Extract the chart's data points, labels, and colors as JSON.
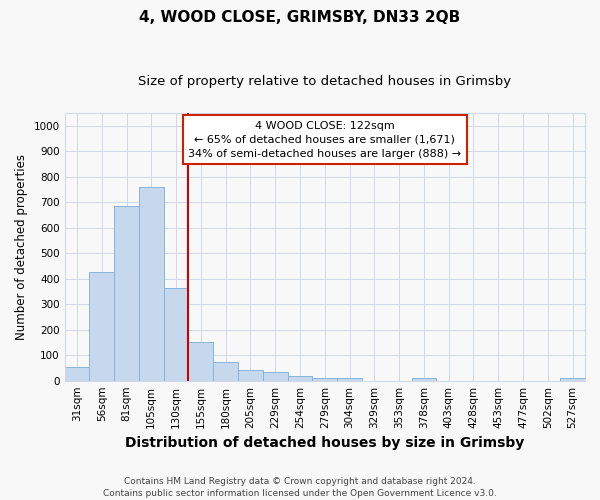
{
  "title": "4, WOOD CLOSE, GRIMSBY, DN33 2QB",
  "subtitle": "Size of property relative to detached houses in Grimsby",
  "xlabel": "Distribution of detached houses by size in Grimsby",
  "ylabel": "Number of detached properties",
  "categories": [
    "31sqm",
    "56sqm",
    "81sqm",
    "105sqm",
    "130sqm",
    "155sqm",
    "180sqm",
    "205sqm",
    "229sqm",
    "254sqm",
    "279sqm",
    "304sqm",
    "329sqm",
    "353sqm",
    "378sqm",
    "403sqm",
    "428sqm",
    "453sqm",
    "477sqm",
    "502sqm",
    "527sqm"
  ],
  "values": [
    52,
    425,
    685,
    760,
    365,
    153,
    75,
    40,
    33,
    18,
    12,
    10,
    0,
    0,
    10,
    0,
    0,
    0,
    0,
    0,
    10
  ],
  "bar_color": "#c5d8ee",
  "bar_edge_color": "#88b4d8",
  "marker_line_index": 4,
  "marker_color": "#cc0000",
  "annotation_text": "4 WOOD CLOSE: 122sqm\n← 65% of detached houses are smaller (1,671)\n34% of semi-detached houses are larger (888) →",
  "annotation_box_facecolor": "#ffffff",
  "annotation_box_edgecolor": "#cc2200",
  "ylim": [
    0,
    1050
  ],
  "yticks": [
    0,
    100,
    200,
    300,
    400,
    500,
    600,
    700,
    800,
    900,
    1000
  ],
  "footnote": "Contains HM Land Registry data © Crown copyright and database right 2024.\nContains public sector information licensed under the Open Government Licence v3.0.",
  "bg_color": "#f8f8f8",
  "grid_color": "#d0d8e8",
  "title_fontsize": 11,
  "subtitle_fontsize": 9.5,
  "xlabel_fontsize": 10,
  "ylabel_fontsize": 8.5,
  "tick_fontsize": 7.5,
  "annot_fontsize": 8,
  "footnote_fontsize": 6.5
}
